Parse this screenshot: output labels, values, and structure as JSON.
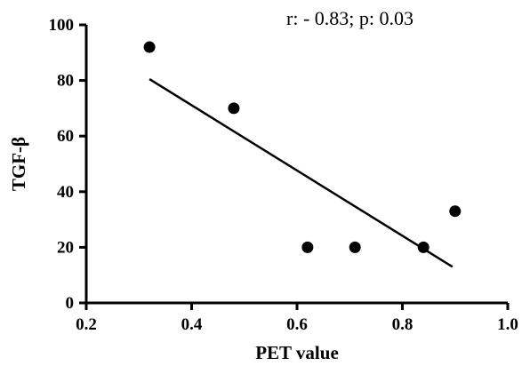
{
  "chart_data": {
    "type": "scatter",
    "title": "",
    "xlabel": "PET value",
    "ylabel": "TGF-β",
    "annotation": "r: - 0.83; p: 0.03",
    "xlim": [
      0.2,
      1.0
    ],
    "ylim": [
      0,
      100
    ],
    "xticks": [
      0.2,
      0.4,
      0.6,
      0.8,
      1.0
    ],
    "xtick_labels": [
      "0.2",
      "0.4",
      "0.6",
      "0.8",
      "1.0"
    ],
    "yticks": [
      0,
      20,
      40,
      60,
      80,
      100
    ],
    "ytick_labels": [
      "0",
      "20",
      "40",
      "60",
      "80",
      "100"
    ],
    "series": [
      {
        "points": [
          {
            "x": 0.32,
            "y": 92
          },
          {
            "x": 0.48,
            "y": 70
          },
          {
            "x": 0.62,
            "y": 20
          },
          {
            "x": 0.71,
            "y": 20
          },
          {
            "x": 0.84,
            "y": 20
          },
          {
            "x": 0.9,
            "y": 33
          }
        ]
      }
    ],
    "trendline": {
      "x": [
        0.32,
        0.895
      ],
      "y": [
        80.5,
        13
      ]
    },
    "grid": false,
    "legend": "none"
  }
}
